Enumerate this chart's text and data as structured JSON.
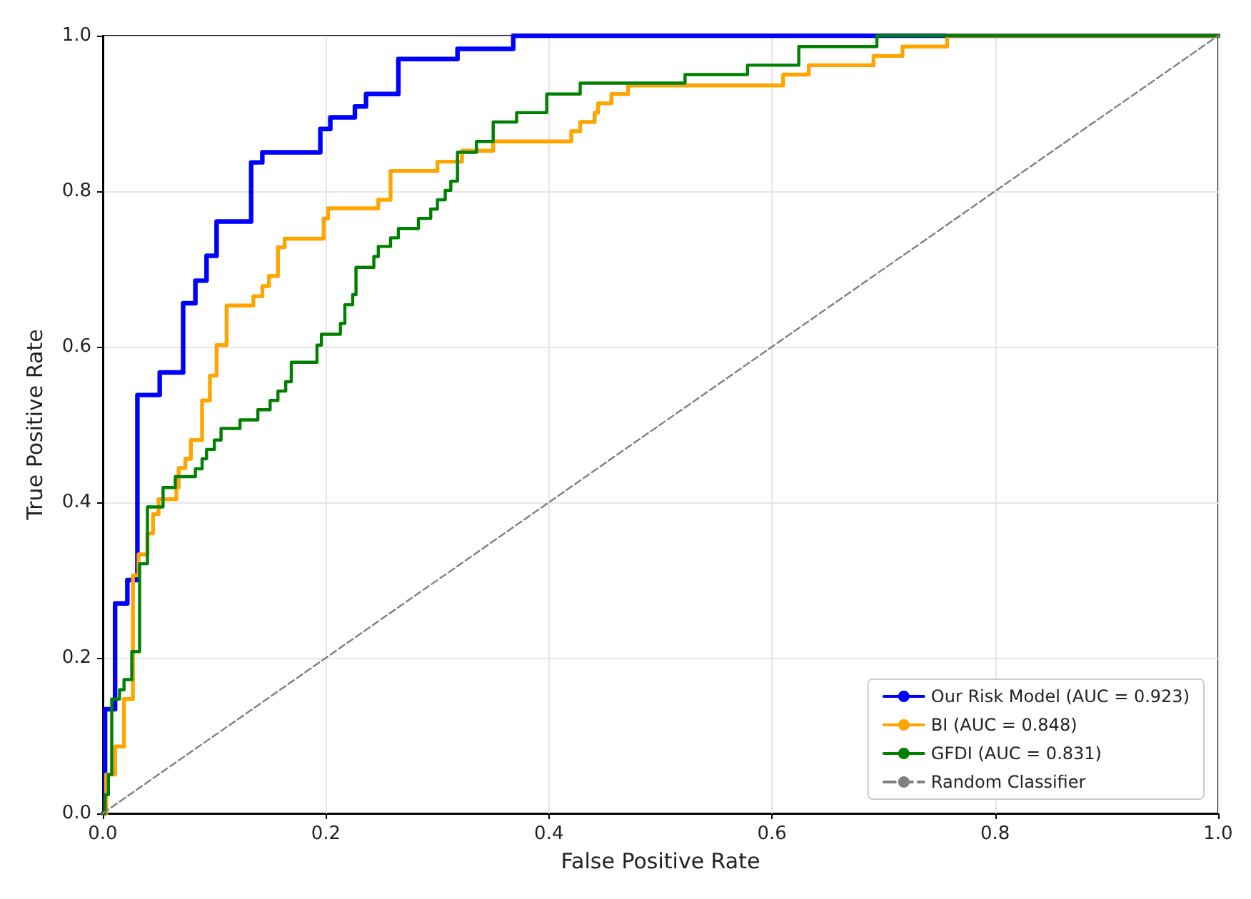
{
  "chart_data": {
    "type": "step",
    "xlabel": "False Positive Rate",
    "ylabel": "True Positive Rate",
    "xlim": [
      0,
      1
    ],
    "ylim": [
      0,
      1
    ],
    "xticks": [
      {
        "value": 0,
        "label": "0.0"
      },
      {
        "value": 0.2,
        "label": "0.2"
      },
      {
        "value": 0.4,
        "label": "0.4"
      },
      {
        "value": 0.6,
        "label": "0.6"
      },
      {
        "value": 0.8,
        "label": "0.8"
      },
      {
        "value": 1,
        "label": "1.0"
      }
    ],
    "yticks": [
      {
        "value": 0,
        "label": "0.0"
      },
      {
        "value": 0.2,
        "label": "0.2"
      },
      {
        "value": 0.4,
        "label": "0.4"
      },
      {
        "value": 0.6,
        "label": "0.6"
      },
      {
        "value": 0.8,
        "label": "0.8"
      },
      {
        "value": 1,
        "label": "1.0"
      }
    ],
    "grid": true,
    "legend": "bottom right",
    "marker": "none",
    "series": [
      {
        "name": "Our Risk Model (AUC = 0.923)",
        "color": "#0000ff",
        "line_style": "solid",
        "x": [
          0,
          0.002,
          0.011,
          0.022,
          0.031,
          0.051,
          0.072,
          0.083,
          0.093,
          0.102,
          0.133,
          0.143,
          0.195,
          0.204,
          0.226,
          0.236,
          0.265,
          0.318,
          0.368,
          1
        ],
        "values": [
          0,
          0.134,
          0.27,
          0.3,
          0.538,
          0.567,
          0.656,
          0.685,
          0.717,
          0.761,
          0.837,
          0.85,
          0.88,
          0.895,
          0.909,
          0.925,
          0.97,
          0.983,
          1.0,
          1
        ]
      },
      {
        "name": "BI (AUC = 0.848)",
        "color": "#ffa500",
        "line_style": "solid",
        "x": [
          0,
          0.003,
          0.011,
          0.019,
          0.027,
          0.032,
          0.04,
          0.045,
          0.05,
          0.066,
          0.068,
          0.074,
          0.079,
          0.089,
          0.096,
          0.102,
          0.111,
          0.135,
          0.143,
          0.149,
          0.157,
          0.163,
          0.198,
          0.202,
          0.247,
          0.258,
          0.3,
          0.322,
          0.35,
          0.42,
          0.428,
          0.441,
          0.444,
          0.456,
          0.471,
          0.61,
          0.633,
          0.691,
          0.717,
          0.757,
          1
        ],
        "values": [
          0,
          0.05,
          0.086,
          0.147,
          0.306,
          0.333,
          0.36,
          0.385,
          0.404,
          0.419,
          0.444,
          0.456,
          0.48,
          0.531,
          0.563,
          0.602,
          0.653,
          0.665,
          0.678,
          0.691,
          0.728,
          0.739,
          0.765,
          0.778,
          0.789,
          0.826,
          0.838,
          0.852,
          0.864,
          0.877,
          0.889,
          0.901,
          0.913,
          0.925,
          0.936,
          0.95,
          0.962,
          0.974,
          0.986,
          1.0,
          1
        ]
      },
      {
        "name": "GFDI (AUC = 0.831)",
        "color": "#008000",
        "line_style": "solid",
        "x": [
          0,
          0.002,
          0.005,
          0.008,
          0.015,
          0.019,
          0.026,
          0.033,
          0.04,
          0.054,
          0.065,
          0.083,
          0.089,
          0.093,
          0.1,
          0.106,
          0.123,
          0.139,
          0.15,
          0.157,
          0.164,
          0.169,
          0.192,
          0.196,
          0.213,
          0.217,
          0.224,
          0.227,
          0.243,
          0.247,
          0.258,
          0.265,
          0.283,
          0.294,
          0.3,
          0.307,
          0.312,
          0.318,
          0.335,
          0.35,
          0.371,
          0.398,
          0.428,
          0.522,
          0.578,
          0.624,
          0.694,
          1
        ],
        "values": [
          0,
          0.024,
          0.05,
          0.147,
          0.159,
          0.172,
          0.208,
          0.321,
          0.394,
          0.419,
          0.433,
          0.443,
          0.456,
          0.468,
          0.48,
          0.495,
          0.506,
          0.519,
          0.531,
          0.543,
          0.555,
          0.58,
          0.602,
          0.616,
          0.63,
          0.654,
          0.667,
          0.702,
          0.716,
          0.729,
          0.74,
          0.752,
          0.765,
          0.777,
          0.789,
          0.801,
          0.813,
          0.85,
          0.864,
          0.889,
          0.901,
          0.925,
          0.939,
          0.95,
          0.962,
          0.986,
          1.0,
          1
        ]
      },
      {
        "name": "Random Classifier",
        "type": "line",
        "color": "#808080",
        "line_style": "dashed",
        "x": [
          0,
          1
        ],
        "values": [
          0,
          1
        ]
      }
    ]
  }
}
